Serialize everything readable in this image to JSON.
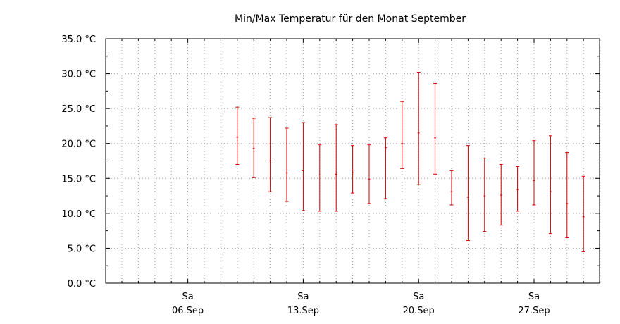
{
  "chart_data": {
    "type": "errorbar",
    "title": "Min/Max Temperatur für den Monat September",
    "xlabel": "",
    "ylabel": "",
    "y_unit": "°C",
    "ylim": [
      0,
      35
    ],
    "y_ticks": [
      "0.0 °C",
      "5.0 °C",
      "10.0 °C",
      "15.0 °C",
      "20.0 °C",
      "25.0 °C",
      "30.0 °C",
      "35.0 °C"
    ],
    "xlim": [
      1,
      30
    ],
    "x_ticks": [
      {
        "day": 5,
        "weekday": "Sa",
        "date": "06.Sep"
      },
      {
        "day": 12,
        "weekday": "Sa",
        "date": "13.Sep"
      },
      {
        "day": 19,
        "weekday": "Sa",
        "date": "20.Sep"
      },
      {
        "day": 26,
        "weekday": "Sa",
        "date": "27.Sep"
      }
    ],
    "grid": true,
    "series_color": "#cc0000",
    "points": [
      {
        "day": 8,
        "min": 17.0,
        "mid": 20.9,
        "max": 25.2
      },
      {
        "day": 9,
        "min": 15.1,
        "mid": 19.3,
        "max": 23.6
      },
      {
        "day": 10,
        "min": 13.1,
        "mid": 17.5,
        "max": 23.7
      },
      {
        "day": 11,
        "min": 11.7,
        "mid": 15.8,
        "max": 22.2
      },
      {
        "day": 12,
        "min": 10.4,
        "mid": 16.1,
        "max": 23.0
      },
      {
        "day": 13,
        "min": 10.3,
        "mid": 15.5,
        "max": 19.8
      },
      {
        "day": 14,
        "min": 10.3,
        "mid": 15.6,
        "max": 22.7
      },
      {
        "day": 15,
        "min": 12.9,
        "mid": 15.8,
        "max": 19.7
      },
      {
        "day": 16,
        "min": 11.4,
        "mid": 14.9,
        "max": 19.8
      },
      {
        "day": 17,
        "min": 12.1,
        "mid": 19.4,
        "max": 20.8
      },
      {
        "day": 18,
        "min": 16.4,
        "mid": 20.0,
        "max": 26.0
      },
      {
        "day": 19,
        "min": 14.1,
        "mid": 21.5,
        "max": 30.2
      },
      {
        "day": 20,
        "min": 15.6,
        "mid": 20.8,
        "max": 28.6
      },
      {
        "day": 21,
        "min": 11.2,
        "mid": 13.1,
        "max": 16.1
      },
      {
        "day": 22,
        "min": 6.1,
        "mid": 12.3,
        "max": 19.7
      },
      {
        "day": 23,
        "min": 7.4,
        "mid": 12.5,
        "max": 17.9
      },
      {
        "day": 24,
        "min": 8.3,
        "mid": 12.6,
        "max": 17.0
      },
      {
        "day": 25,
        "min": 10.3,
        "mid": 13.4,
        "max": 16.7
      },
      {
        "day": 26,
        "min": 11.2,
        "mid": 14.7,
        "max": 20.4
      },
      {
        "day": 27,
        "min": 7.1,
        "mid": 13.1,
        "max": 21.1
      },
      {
        "day": 28,
        "min": 6.5,
        "mid": 11.4,
        "max": 18.7
      },
      {
        "day": 29,
        "min": 4.5,
        "mid": 9.5,
        "max": 15.3
      }
    ]
  }
}
